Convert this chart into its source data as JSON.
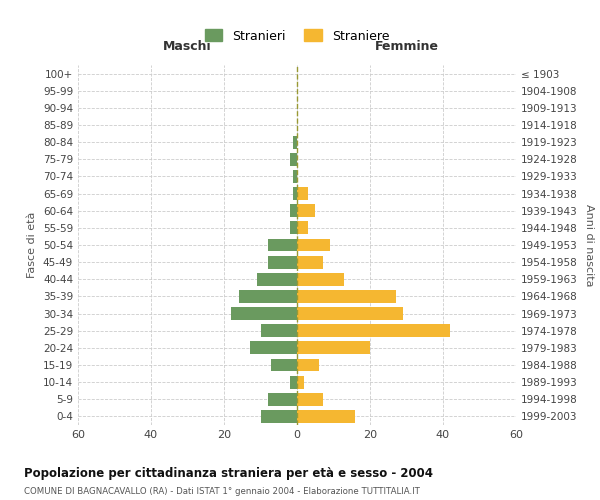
{
  "age_groups": [
    "0-4",
    "5-9",
    "10-14",
    "15-19",
    "20-24",
    "25-29",
    "30-34",
    "35-39",
    "40-44",
    "45-49",
    "50-54",
    "55-59",
    "60-64",
    "65-69",
    "70-74",
    "75-79",
    "80-84",
    "85-89",
    "90-94",
    "95-99",
    "100+"
  ],
  "birth_years": [
    "1999-2003",
    "1994-1998",
    "1989-1993",
    "1984-1988",
    "1979-1983",
    "1974-1978",
    "1969-1973",
    "1964-1968",
    "1959-1963",
    "1954-1958",
    "1949-1953",
    "1944-1948",
    "1939-1943",
    "1934-1938",
    "1929-1933",
    "1924-1928",
    "1919-1923",
    "1914-1918",
    "1909-1913",
    "1904-1908",
    "≤ 1903"
  ],
  "males": [
    10,
    8,
    2,
    7,
    13,
    10,
    18,
    16,
    11,
    8,
    8,
    2,
    2,
    1,
    1,
    2,
    1,
    0,
    0,
    0,
    0
  ],
  "females": [
    16,
    7,
    2,
    6,
    20,
    42,
    29,
    27,
    13,
    7,
    9,
    3,
    5,
    3,
    0,
    0,
    0,
    0,
    0,
    0,
    0
  ],
  "male_color": "#6a9a5f",
  "female_color": "#f5b731",
  "title": "Popolazione per cittadinanza straniera per età e sesso - 2004",
  "subtitle": "COMUNE DI BAGNACAVALLO (RA) - Dati ISTAT 1° gennaio 2004 - Elaborazione TUTTITALIA.IT",
  "ylabel_left": "Fasce di età",
  "ylabel_right": "Anni di nascita",
  "xlabel_left": "Maschi",
  "xlabel_right": "Femmine",
  "legend_male": "Stranieri",
  "legend_female": "Straniere",
  "xlim": 60,
  "background_color": "#ffffff",
  "grid_color": "#cccccc",
  "dashed_line_color": "#999933"
}
